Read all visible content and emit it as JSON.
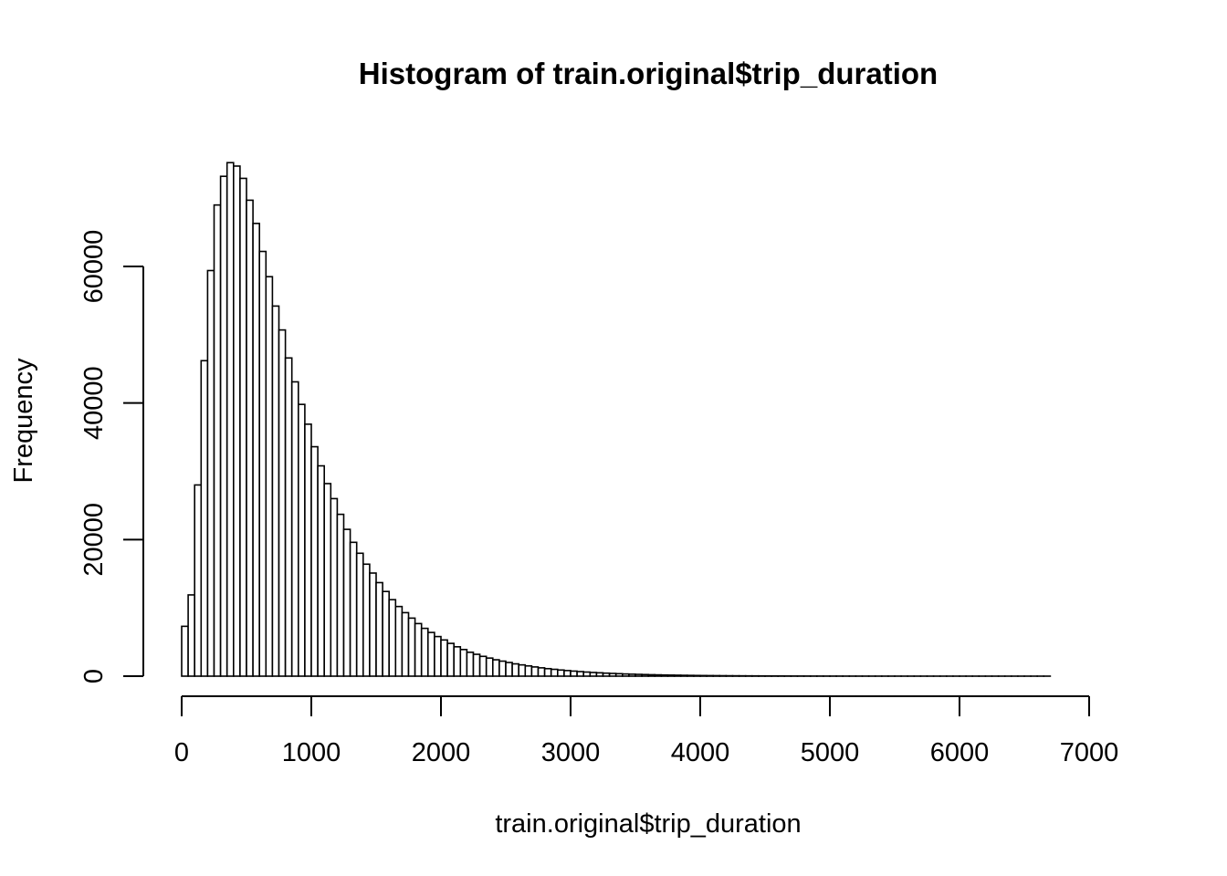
{
  "chart_data": {
    "type": "bar",
    "title": "Histogram of train.original$trip_duration",
    "xlabel": "train.original$trip_duration",
    "ylabel": "Frequency",
    "xlim": [
      0,
      7200
    ],
    "ylim": [
      0,
      75000
    ],
    "x_ticks": [
      0,
      1000,
      2000,
      3000,
      4000,
      5000,
      6000,
      7000
    ],
    "x_tick_labels": [
      "0",
      "1000",
      "2000",
      "3000",
      "4000",
      "5000",
      "6000",
      "7000"
    ],
    "y_ticks": [
      0,
      20000,
      40000,
      60000
    ],
    "y_tick_labels": [
      "0",
      "20000",
      "40000",
      "60000"
    ],
    "bin_width": 50,
    "grid": false,
    "values": [
      7300,
      11900,
      28000,
      46200,
      59400,
      69000,
      73200,
      75200,
      74700,
      72900,
      69700,
      66300,
      62200,
      58500,
      54200,
      50700,
      46600,
      43100,
      39800,
      36900,
      33600,
      30800,
      28200,
      26000,
      23700,
      21500,
      19600,
      18000,
      16400,
      15100,
      13700,
      12400,
      11200,
      10200,
      9300,
      8500,
      7700,
      7000,
      6400,
      5800,
      5300,
      4800,
      4300,
      3900,
      3500,
      3200,
      2900,
      2650,
      2400,
      2200,
      2000,
      1800,
      1650,
      1500,
      1350,
      1220,
      1100,
      1000,
      900,
      820,
      740,
      670,
      600,
      540,
      490,
      440,
      400,
      360,
      320,
      290,
      260,
      235,
      210,
      190,
      170,
      155,
      140,
      125,
      112,
      100,
      90,
      81,
      73,
      66,
      59,
      53,
      48,
      43,
      39,
      35,
      31,
      28,
      25,
      22,
      20,
      18,
      16,
      14,
      13,
      12,
      10,
      9,
      8,
      7,
      6,
      6,
      5,
      5,
      4,
      4,
      4,
      3,
      3,
      3,
      3,
      2,
      2,
      2,
      2,
      2,
      2,
      2,
      2,
      1,
      1,
      1,
      1,
      1,
      1,
      1,
      1,
      1,
      1,
      1
    ]
  }
}
